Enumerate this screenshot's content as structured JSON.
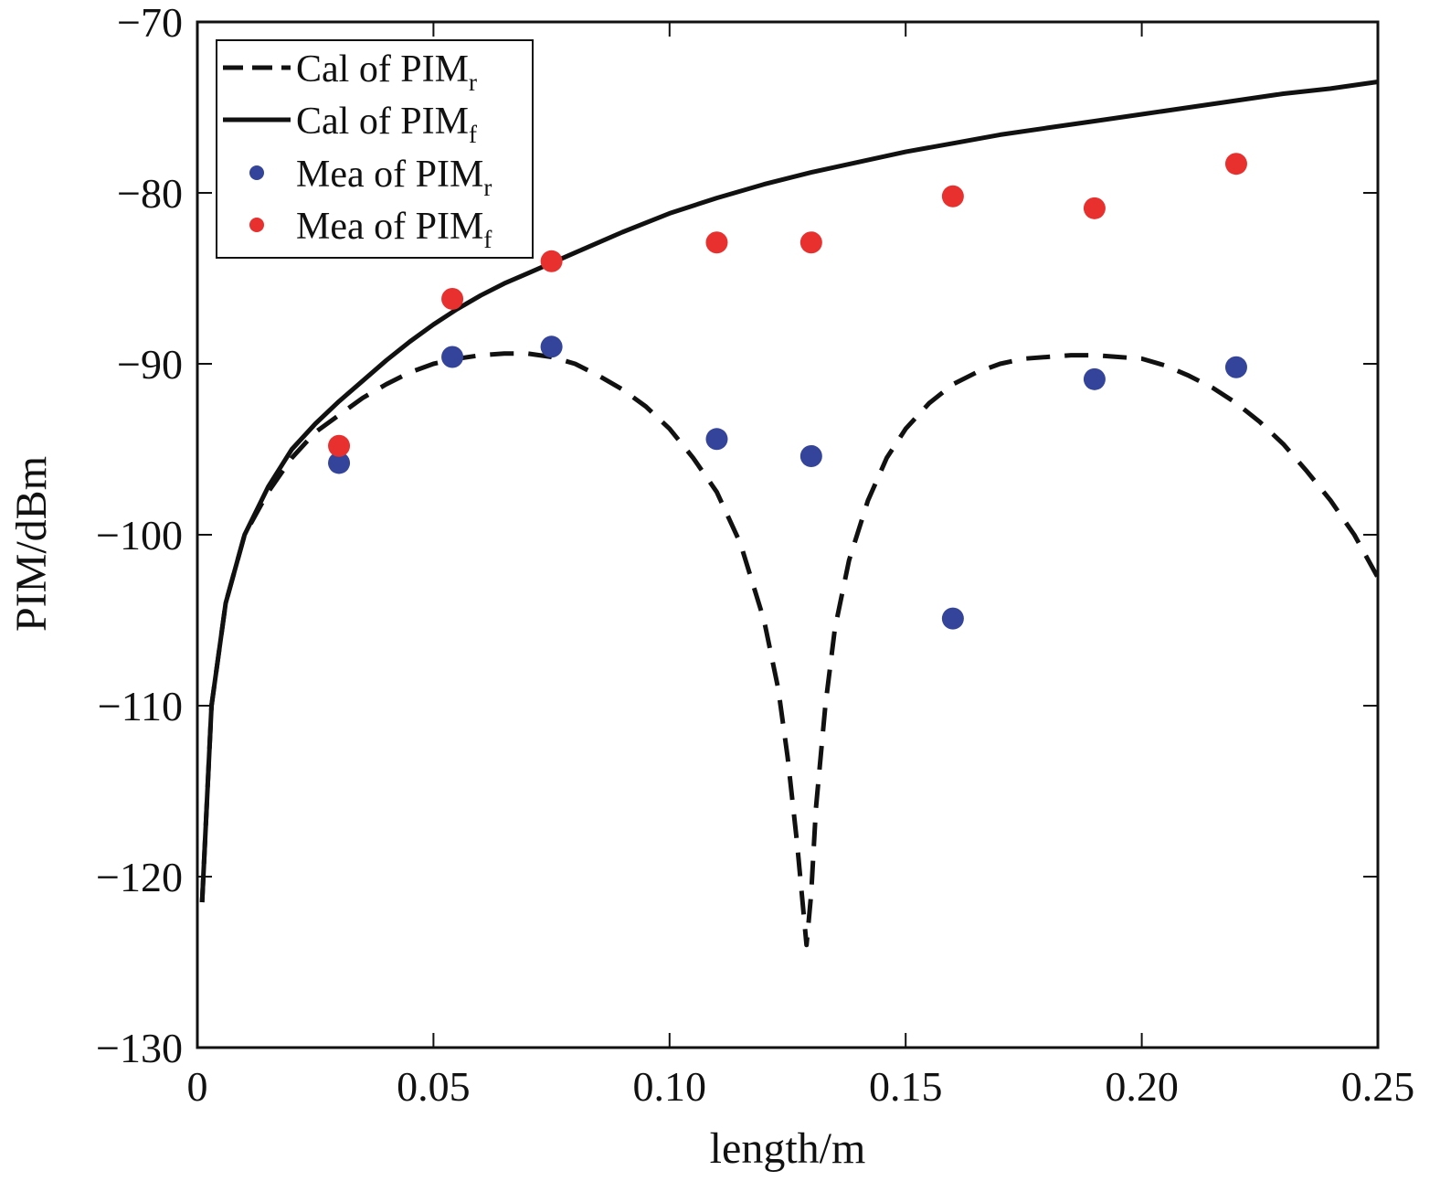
{
  "chart_data": {
    "type": "line",
    "xlabel": "length/m",
    "ylabel": "PIM/dBm",
    "xlim": [
      0,
      0.25
    ],
    "ylim": [
      -130,
      -70
    ],
    "x_ticks": [
      0,
      0.05,
      0.1,
      0.15,
      0.2,
      0.25
    ],
    "x_tick_labels": [
      "0",
      "0.05",
      "0.10",
      "0.15",
      "0.20",
      "0.25"
    ],
    "y_ticks": [
      -130,
      -120,
      -110,
      -100,
      -90,
      -80,
      -70
    ],
    "y_tick_labels": [
      "−130",
      "−120",
      "−110",
      "−100",
      "−90",
      "−80",
      "−70"
    ],
    "grid": false,
    "legend_position": "top-left",
    "legend": [
      {
        "prefix": "Cal of PIM",
        "sub": "r",
        "marker": "dashed-line",
        "color": "#111111"
      },
      {
        "prefix": "Cal of PIM",
        "sub": "f",
        "marker": "solid-line",
        "color": "#111111"
      },
      {
        "prefix": "Mea of PIM",
        "sub": "r",
        "marker": "dot",
        "color": "#33449a"
      },
      {
        "prefix": "Mea of PIM",
        "sub": "f",
        "marker": "dot",
        "color": "#e8302e"
      }
    ],
    "series": [
      {
        "style": "dashed",
        "color": "#111111",
        "x": [
          0.001,
          0.003,
          0.006,
          0.01,
          0.015,
          0.02,
          0.025,
          0.03,
          0.035,
          0.04,
          0.045,
          0.05,
          0.055,
          0.06,
          0.065,
          0.07,
          0.075,
          0.08,
          0.085,
          0.09,
          0.095,
          0.1,
          0.105,
          0.11,
          0.115,
          0.12,
          0.123,
          0.125,
          0.127,
          0.128,
          0.129,
          0.13,
          0.131,
          0.133,
          0.135,
          0.138,
          0.142,
          0.146,
          0.15,
          0.155,
          0.16,
          0.165,
          0.17,
          0.175,
          0.18,
          0.185,
          0.19,
          0.195,
          0.2,
          0.205,
          0.21,
          0.215,
          0.22,
          0.225,
          0.23,
          0.235,
          0.24,
          0.245,
          0.25
        ],
        "values": [
          -121.5,
          -110,
          -104,
          -100,
          -97.5,
          -95.5,
          -94,
          -93,
          -92,
          -91.2,
          -90.5,
          -90,
          -89.7,
          -89.5,
          -89.4,
          -89.4,
          -89.6,
          -90,
          -90.7,
          -91.5,
          -92.5,
          -93.8,
          -95.5,
          -97.5,
          -100.5,
          -105,
          -109,
          -113,
          -118,
          -121,
          -124,
          -121,
          -116,
          -110,
          -105.5,
          -101.5,
          -98,
          -95.5,
          -93.8,
          -92.3,
          -91.2,
          -90.5,
          -90,
          -89.7,
          -89.6,
          -89.5,
          -89.5,
          -89.6,
          -89.7,
          -90.1,
          -90.7,
          -91.4,
          -92.3,
          -93.4,
          -94.7,
          -96.3,
          -98,
          -100,
          -102.5
        ]
      },
      {
        "style": "solid",
        "color": "#111111",
        "x": [
          0.001,
          0.003,
          0.006,
          0.01,
          0.015,
          0.02,
          0.025,
          0.03,
          0.035,
          0.04,
          0.045,
          0.05,
          0.055,
          0.06,
          0.065,
          0.07,
          0.075,
          0.08,
          0.09,
          0.1,
          0.11,
          0.12,
          0.13,
          0.14,
          0.15,
          0.16,
          0.17,
          0.18,
          0.19,
          0.2,
          0.21,
          0.22,
          0.23,
          0.24,
          0.25
        ],
        "values": [
          -121.5,
          -110,
          -104,
          -100,
          -97.2,
          -95,
          -93.5,
          -92.2,
          -91,
          -89.8,
          -88.7,
          -87.7,
          -86.8,
          -86,
          -85.3,
          -84.7,
          -84.1,
          -83.5,
          -82.3,
          -81.2,
          -80.3,
          -79.5,
          -78.8,
          -78.2,
          -77.6,
          -77.1,
          -76.6,
          -76.2,
          -75.8,
          -75.4,
          -75,
          -74.6,
          -74.2,
          -73.9,
          -73.5
        ]
      },
      {
        "style": "dots",
        "color": "#33449a",
        "x": [
          0.03,
          0.054,
          0.075,
          0.11,
          0.13,
          0.16,
          0.19,
          0.22
        ],
        "values": [
          -95.8,
          -89.6,
          -89,
          -94.4,
          -95.4,
          -104.9,
          -90.9,
          -90.2
        ]
      },
      {
        "style": "dots",
        "color": "#e8302e",
        "x": [
          0.03,
          0.054,
          0.075,
          0.11,
          0.13,
          0.16,
          0.19,
          0.22
        ],
        "values": [
          -94.8,
          -86.2,
          -84,
          -82.9,
          -82.9,
          -80.2,
          -80.9,
          -78.3
        ]
      }
    ]
  }
}
